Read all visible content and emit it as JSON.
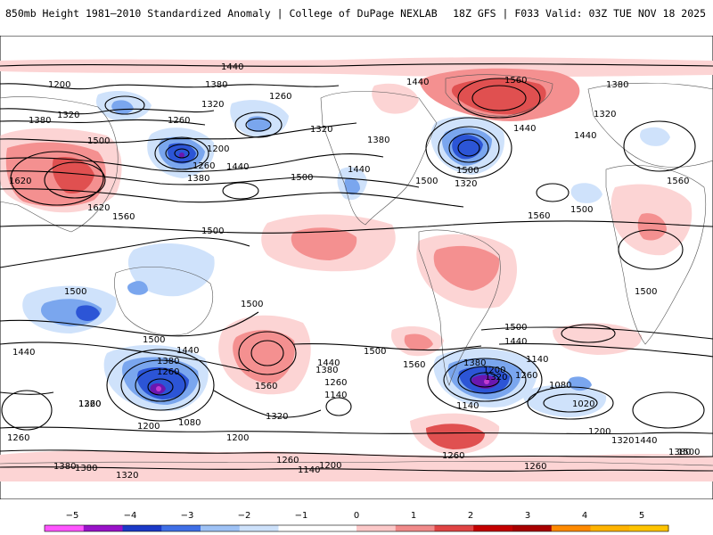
{
  "header": {
    "left_title": "850mb Height 1981–2010 Standardized Anomaly | College of DuPage NEXLAB",
    "right_title": "18Z GFS | F033 Valid: 03Z TUE NOV 18 2025"
  },
  "colors": {
    "anom_pos_1": "#fcd4d4",
    "anom_pos_2": "#f49090",
    "anom_pos_3": "#e05050",
    "anom_neg_1": "#cfe2fb",
    "anom_neg_2": "#7aa6ee",
    "anom_neg_3": "#2c55d6",
    "anom_neg_4": "#6a17b0",
    "anom_neg_5": "#c13bd0",
    "contour": "#000000"
  },
  "colorbar": {
    "ticks": [
      "−5",
      "−4",
      "−3",
      "−2",
      "−1",
      "0",
      "1",
      "2",
      "3",
      "4",
      "5"
    ],
    "colors": [
      "#ff55ff",
      "#9912c9",
      "#1b39c7",
      "#3f6fe6",
      "#9ec2f5",
      "#cde1fa",
      "#ffffff",
      "#ffffff",
      "#fbc8c8",
      "#f08a8a",
      "#e04444",
      "#c40000",
      "#a80000",
      "#ff8a00",
      "#ffb300",
      "#ffc400"
    ]
  },
  "contour_labels": [
    {
      "id": "c1",
      "text": "1440"
    },
    {
      "id": "c2",
      "text": "1200"
    },
    {
      "id": "c3",
      "text": "1380"
    },
    {
      "id": "c4",
      "text": "1320"
    },
    {
      "id": "c5",
      "text": "1380"
    },
    {
      "id": "c6",
      "text": "1260"
    },
    {
      "id": "c7",
      "text": "1260"
    },
    {
      "id": "c8",
      "text": "1320"
    },
    {
      "id": "c9",
      "text": "1320"
    },
    {
      "id": "c10",
      "text": "1500"
    },
    {
      "id": "c11",
      "text": "1200"
    },
    {
      "id": "c12",
      "text": "1260"
    },
    {
      "id": "c13",
      "text": "1440"
    },
    {
      "id": "c14",
      "text": "1380"
    },
    {
      "id": "c15",
      "text": "1500"
    },
    {
      "id": "c16",
      "text": "1620"
    },
    {
      "id": "c17",
      "text": "1620"
    },
    {
      "id": "c18",
      "text": "1560"
    },
    {
      "id": "c19",
      "text": "1440"
    },
    {
      "id": "c20",
      "text": "1500"
    },
    {
      "id": "c21",
      "text": "1380"
    },
    {
      "id": "c22",
      "text": "1500"
    },
    {
      "id": "c23",
      "text": "1320"
    },
    {
      "id": "c24",
      "text": "1440"
    },
    {
      "id": "c25",
      "text": "1560"
    },
    {
      "id": "c26",
      "text": "1440"
    },
    {
      "id": "c27",
      "text": "1380"
    },
    {
      "id": "c28",
      "text": "1320"
    },
    {
      "id": "c29",
      "text": "1440"
    },
    {
      "id": "c30",
      "text": "1560"
    },
    {
      "id": "c31",
      "text": "1500"
    },
    {
      "id": "c32",
      "text": "1500"
    },
    {
      "id": "c33",
      "text": "1560"
    },
    {
      "id": "c34",
      "text": "1500"
    },
    {
      "id": "c35",
      "text": "1500"
    },
    {
      "id": "c36",
      "text": "1500"
    },
    {
      "id": "c37",
      "text": "1500"
    },
    {
      "id": "c38",
      "text": "1440"
    },
    {
      "id": "c39",
      "text": "1440"
    },
    {
      "id": "c40",
      "text": "1380"
    },
    {
      "id": "c41",
      "text": "1260"
    },
    {
      "id": "c42",
      "text": "1080"
    },
    {
      "id": "c43",
      "text": "1200"
    },
    {
      "id": "c44",
      "text": "1320"
    },
    {
      "id": "c45",
      "text": "1260"
    },
    {
      "id": "c46",
      "text": "1200"
    },
    {
      "id": "c47",
      "text": "1560"
    },
    {
      "id": "c48",
      "text": "1440"
    },
    {
      "id": "c49",
      "text": "1380"
    },
    {
      "id": "c50",
      "text": "1260"
    },
    {
      "id": "c51",
      "text": "1140"
    },
    {
      "id": "c52",
      "text": "1500"
    },
    {
      "id": "c53",
      "text": "1560"
    },
    {
      "id": "c54",
      "text": "1500"
    },
    {
      "id": "c55",
      "text": "1440"
    },
    {
      "id": "c56",
      "text": "1380"
    },
    {
      "id": "c57",
      "text": "1320"
    },
    {
      "id": "c58",
      "text": "1200"
    },
    {
      "id": "c59",
      "text": "1260"
    },
    {
      "id": "c60",
      "text": "1080"
    },
    {
      "id": "c61",
      "text": "1140"
    },
    {
      "id": "c62",
      "text": "1020"
    },
    {
      "id": "c63",
      "text": "1140"
    },
    {
      "id": "c64",
      "text": "1200"
    },
    {
      "id": "c65",
      "text": "1320"
    },
    {
      "id": "c66",
      "text": "1380"
    },
    {
      "id": "c67",
      "text": "1260"
    },
    {
      "id": "c68",
      "text": "1260"
    },
    {
      "id": "c69",
      "text": "1140"
    },
    {
      "id": "c70",
      "text": "1260"
    },
    {
      "id": "c71",
      "text": "1200"
    },
    {
      "id": "c72",
      "text": "1320"
    },
    {
      "id": "c73",
      "text": "1380"
    },
    {
      "id": "c74",
      "text": "1260"
    },
    {
      "id": "c75",
      "text": "1320"
    },
    {
      "id": "c76",
      "text": "1440"
    },
    {
      "id": "c77",
      "text": "1500"
    },
    {
      "id": "c78",
      "text": "1380"
    }
  ]
}
